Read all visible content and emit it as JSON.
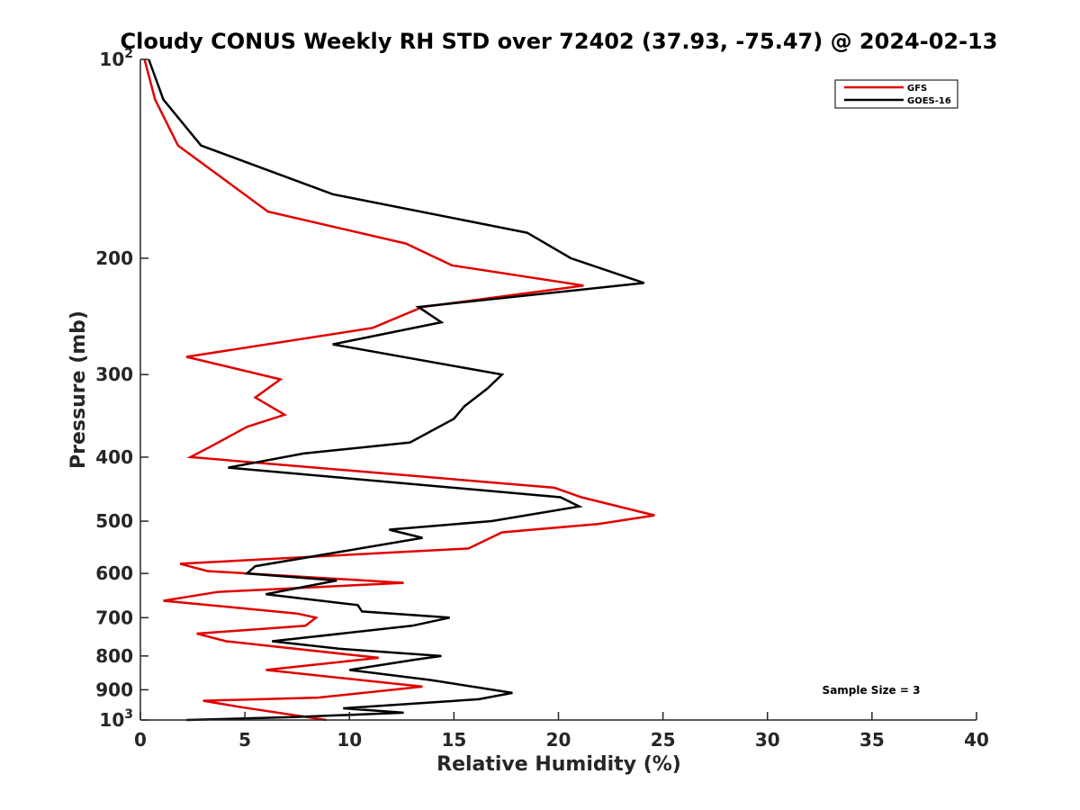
{
  "chart_data": {
    "type": "line",
    "title": "Cloudy CONUS Weekly RH STD over 72402 (37.93, -75.47) @ 2024-02-13",
    "xlabel": "Relative Humidity (%)",
    "ylabel": "Pressure (mb)",
    "xlim": [
      0,
      40
    ],
    "ylim": [
      100,
      1000
    ],
    "y_scale": "log",
    "y_reversed": true,
    "grid": false,
    "legend_position": "top-right",
    "x_ticks": [
      "0",
      "5",
      "10",
      "15",
      "20",
      "25",
      "30",
      "35",
      "40"
    ],
    "y_ticks": [
      {
        "value": 100,
        "base": "10",
        "exp": "2"
      },
      {
        "value": 200,
        "label": "200"
      },
      {
        "value": 300,
        "label": "300"
      },
      {
        "value": 400,
        "label": "400"
      },
      {
        "value": 500,
        "label": "500"
      },
      {
        "value": 600,
        "label": "600"
      },
      {
        "value": 700,
        "label": "700"
      },
      {
        "value": 800,
        "label": "800"
      },
      {
        "value": 900,
        "label": "900"
      },
      {
        "value": 1000,
        "base": "10",
        "exp": "3"
      }
    ],
    "annotation": "Sample Size = 3",
    "series": [
      {
        "name": "GFS",
        "color": "#e00000",
        "points": [
          [
            0.2,
            100
          ],
          [
            0.7,
            115
          ],
          [
            1.8,
            135
          ],
          [
            6.1,
            170
          ],
          [
            12.7,
            190
          ],
          [
            14.9,
            205
          ],
          [
            21.2,
            220
          ],
          [
            13.5,
            237
          ],
          [
            11.1,
            255
          ],
          [
            2.2,
            282
          ],
          [
            6.7,
            305
          ],
          [
            5.5,
            325
          ],
          [
            6.9,
            345
          ],
          [
            5.1,
            360
          ],
          [
            3.4,
            385
          ],
          [
            2.4,
            400
          ],
          [
            19.8,
            445
          ],
          [
            21.1,
            460
          ],
          [
            24.6,
            490
          ],
          [
            21.9,
            505
          ],
          [
            17.3,
            520
          ],
          [
            15.7,
            550
          ],
          [
            1.9,
            580
          ],
          [
            3.2,
            595
          ],
          [
            12.6,
            620
          ],
          [
            3.7,
            640
          ],
          [
            1.1,
            660
          ],
          [
            7.5,
            690
          ],
          [
            8.4,
            700
          ],
          [
            7.9,
            720
          ],
          [
            2.7,
            740
          ],
          [
            4.1,
            760
          ],
          [
            11.4,
            805
          ],
          [
            6.0,
            840
          ],
          [
            13.5,
            890
          ],
          [
            8.5,
            925
          ],
          [
            3.0,
            935
          ],
          [
            4.7,
            955
          ],
          [
            8.9,
            1000
          ]
        ]
      },
      {
        "name": "GOES-16",
        "color": "#000000",
        "points": [
          [
            0.4,
            100
          ],
          [
            1.1,
            115
          ],
          [
            2.9,
            135
          ],
          [
            9.2,
            160
          ],
          [
            18.5,
            183
          ],
          [
            20.6,
            200
          ],
          [
            24.1,
            218
          ],
          [
            13.3,
            237
          ],
          [
            14.4,
            250
          ],
          [
            9.2,
            270
          ],
          [
            17.3,
            300
          ],
          [
            16.6,
            315
          ],
          [
            15.5,
            335
          ],
          [
            15.0,
            350
          ],
          [
            12.9,
            380
          ],
          [
            7.8,
            395
          ],
          [
            4.2,
            415
          ],
          [
            20.1,
            460
          ],
          [
            21.0,
            475
          ],
          [
            16.8,
            500
          ],
          [
            11.9,
            515
          ],
          [
            13.5,
            530
          ],
          [
            5.5,
            585
          ],
          [
            5.1,
            600
          ],
          [
            9.4,
            615
          ],
          [
            6.0,
            645
          ],
          [
            10.4,
            670
          ],
          [
            10.6,
            685
          ],
          [
            14.8,
            700
          ],
          [
            13.0,
            720
          ],
          [
            6.3,
            760
          ],
          [
            9.5,
            780
          ],
          [
            14.4,
            800
          ],
          [
            13.2,
            810
          ],
          [
            10.0,
            840
          ],
          [
            13.9,
            870
          ],
          [
            17.8,
            910
          ],
          [
            16.2,
            930
          ],
          [
            9.7,
            960
          ],
          [
            12.6,
            975
          ],
          [
            7.3,
            990
          ],
          [
            2.2,
            1000
          ]
        ]
      }
    ]
  }
}
